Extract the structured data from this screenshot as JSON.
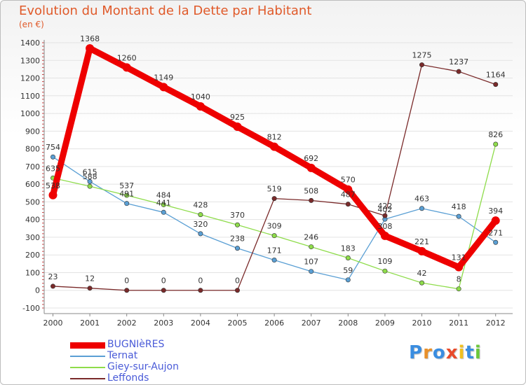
{
  "title": "Evolution du Montant de la Dette par Habitant",
  "unit": "(en €)",
  "chart_data": {
    "type": "line",
    "title": "Evolution du Montant de la Dette par Habitant",
    "ylabel": "(en €)",
    "xlabel": "",
    "ylim": [
      -100,
      1400
    ],
    "yticks": [
      -100,
      0,
      100,
      200,
      300,
      400,
      500,
      600,
      700,
      800,
      900,
      1000,
      1100,
      1200,
      1300,
      1400
    ],
    "x": [
      "2000",
      "2001",
      "2002",
      "2003",
      "2004",
      "2005",
      "2006",
      "2007",
      "2008",
      "2009",
      "2010",
      "2011",
      "2012"
    ],
    "series": [
      {
        "name": "BUGNIèRES",
        "color": "#ee0000",
        "values": [
          538,
          1368,
          1260,
          1149,
          1040,
          925,
          812,
          692,
          570,
          308,
          221,
          131,
          394
        ]
      },
      {
        "name": "Ternat",
        "color": "#5a9fd4",
        "values": [
          754,
          615,
          491,
          441,
          320,
          238,
          171,
          107,
          59,
          402,
          463,
          418,
          271
        ]
      },
      {
        "name": "Giey-sur-Aujon",
        "color": "#8edc4a",
        "values": [
          635,
          588,
          537,
          484,
          428,
          370,
          309,
          246,
          183,
          109,
          42,
          8,
          826
        ]
      },
      {
        "name": "Leffonds",
        "color": "#7a2a2a",
        "values": [
          23,
          12,
          0,
          0,
          0,
          0,
          519,
          508,
          487,
          422,
          1275,
          1237,
          1164
        ]
      }
    ]
  },
  "logo": {
    "letters": [
      "P",
      "r",
      "o",
      "x",
      "i",
      "t",
      "i"
    ],
    "colors": [
      "#3a8de0",
      "#e8902a",
      "#3a8de0",
      "#e84a2a",
      "#f0c020",
      "#3a8de0",
      "#6cc83a"
    ]
  }
}
